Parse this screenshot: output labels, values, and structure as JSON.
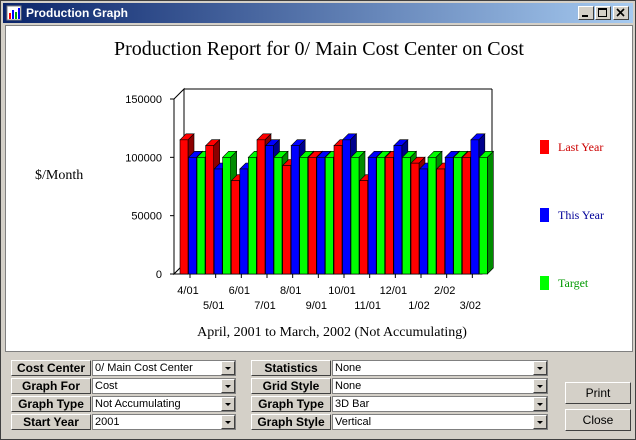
{
  "window": {
    "title": "Production Graph",
    "accent": "#0a246a"
  },
  "chart_data": {
    "type": "bar",
    "title": "Production Report for 0/ Main Cost Center on Cost",
    "subtitle": "April, 2001 to March, 2002 (Not Accumulating)",
    "ylabel": "$/Month",
    "xlabel": "",
    "ylim": [
      0,
      150000
    ],
    "yticks": [
      "0",
      "50000",
      "100000",
      "150000"
    ],
    "categories": [
      "4/01",
      "5/01",
      "6/01",
      "7/01",
      "8/01",
      "9/01",
      "10/01",
      "11/01",
      "12/01",
      "1/02",
      "2/02",
      "3/02"
    ],
    "series": [
      {
        "name": "Last Year",
        "color": "#ff0000",
        "values": [
          115000,
          110000,
          80000,
          115000,
          93000,
          100000,
          110000,
          80000,
          100000,
          95000,
          90000,
          100000
        ]
      },
      {
        "name": "This Year",
        "color": "#0000ff",
        "values": [
          100000,
          90000,
          90000,
          110000,
          110000,
          100000,
          115000,
          100000,
          110000,
          90000,
          100000,
          115000
        ]
      },
      {
        "name": "Target",
        "color": "#00ff00",
        "values": [
          100000,
          100000,
          100000,
          100000,
          100000,
          100000,
          100000,
          100000,
          100000,
          100000,
          100000,
          100000
        ]
      }
    ],
    "legend": "right",
    "grid": false,
    "style": "3D Bar"
  },
  "controls": {
    "left": [
      {
        "label": "Cost Center",
        "value": "0/ Main Cost Center"
      },
      {
        "label": "Graph For",
        "value": "Cost"
      },
      {
        "label": "Graph Type",
        "value": "Not Accumulating"
      },
      {
        "label": "Start Year",
        "value": "2001"
      }
    ],
    "right": [
      {
        "label": "Statistics",
        "value": "None"
      },
      {
        "label": "Grid Style",
        "value": "None"
      },
      {
        "label": "Graph Type",
        "value": "3D Bar"
      },
      {
        "label": "Graph Style",
        "value": "Vertical"
      }
    ]
  },
  "buttons": {
    "print": "Print",
    "close": "Close"
  }
}
